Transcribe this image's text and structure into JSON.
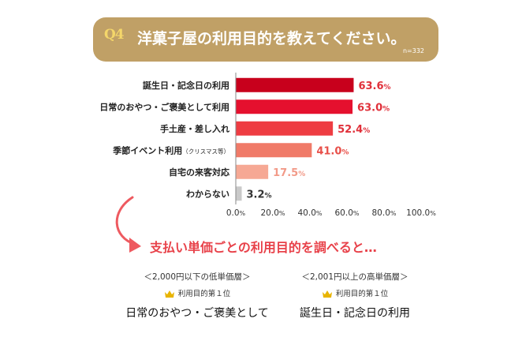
{
  "question": {
    "badge": "Q4",
    "title": "洋菓子屋の利用目的を教えてください。",
    "sample": "n=332"
  },
  "colors": {
    "banner": "#c0a066",
    "badge_text": "#f4d66a",
    "accent": "#e8424a",
    "arrow": "#ee5a60",
    "crown": "#e8b400"
  },
  "chart_data": {
    "type": "bar",
    "orientation": "horizontal",
    "categories": [
      "誕生日・記念日の利用",
      "日常のおやつ・ご褒美として利用",
      "手土産・差し入れ",
      "季節イベント利用",
      "自宅の来客対応",
      "わからない"
    ],
    "category_notes": [
      "",
      "",
      "",
      "（クリスマス等）",
      "",
      ""
    ],
    "values": [
      63.6,
      63.0,
      52.4,
      41.0,
      17.5,
      3.2
    ],
    "value_labels": [
      "63.6",
      "63.0",
      "52.4",
      "41.0",
      "17.5",
      "3.2"
    ],
    "unit": "%",
    "bar_colors": [
      "#c8001c",
      "#e5102e",
      "#ee3c42",
      "#f07a68",
      "#f6a894",
      "#c9c9c9"
    ],
    "label_colors": [
      "#e0303a",
      "#e0303a",
      "#e0303a",
      "#e8504a",
      "#f29a88",
      "#333333"
    ],
    "xlim": [
      0,
      100
    ],
    "xticks": [
      "0.0%",
      "20.0%",
      "40.0%",
      "60.0%",
      "80.0%",
      "100.0%"
    ],
    "xlabel": "",
    "ylabel": "",
    "grid": false
  },
  "headline": "支払い単価ごとの利用目的を調べると…",
  "segments": [
    {
      "label": "＜2,000円以下の低単価層＞",
      "rank": "利用目的第１位",
      "answer": "日常のおやつ・ご褒美として"
    },
    {
      "label": "＜2,001円以上の高単価層＞",
      "rank": "利用目的第１位",
      "answer": "誕生日・記念日の利用"
    }
  ]
}
